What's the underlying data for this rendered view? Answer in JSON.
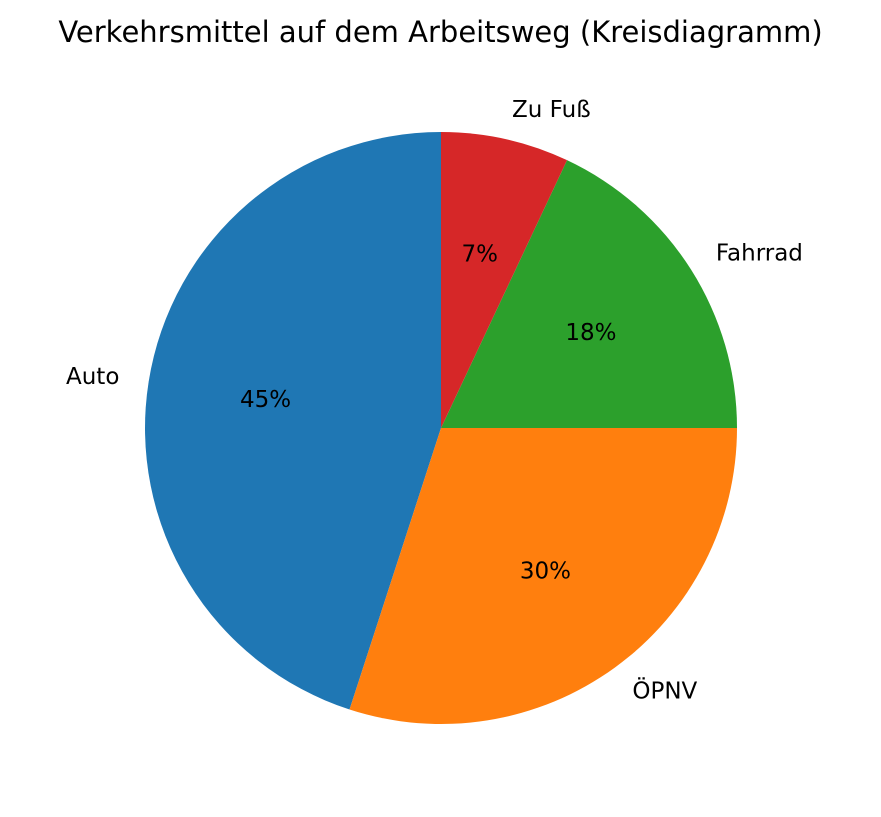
{
  "chart_data": {
    "type": "pie",
    "title": "Verkehrsmittel auf dem Arbeitsweg (Kreisdiagramm)",
    "start_angle_deg": 90,
    "direction": "counterclockwise",
    "slices": [
      {
        "label": "Auto",
        "value": 45,
        "pct_label": "45%",
        "color": "#1f77b4"
      },
      {
        "label": "ÖPNV",
        "value": 30,
        "pct_label": "30%",
        "color": "#ff7f0e"
      },
      {
        "label": "Fahrrad",
        "value": 18,
        "pct_label": "18%",
        "color": "#2ca02c"
      },
      {
        "label": "Zu Fuß",
        "value": 7,
        "pct_label": "7%",
        "color": "#d62728"
      }
    ]
  }
}
